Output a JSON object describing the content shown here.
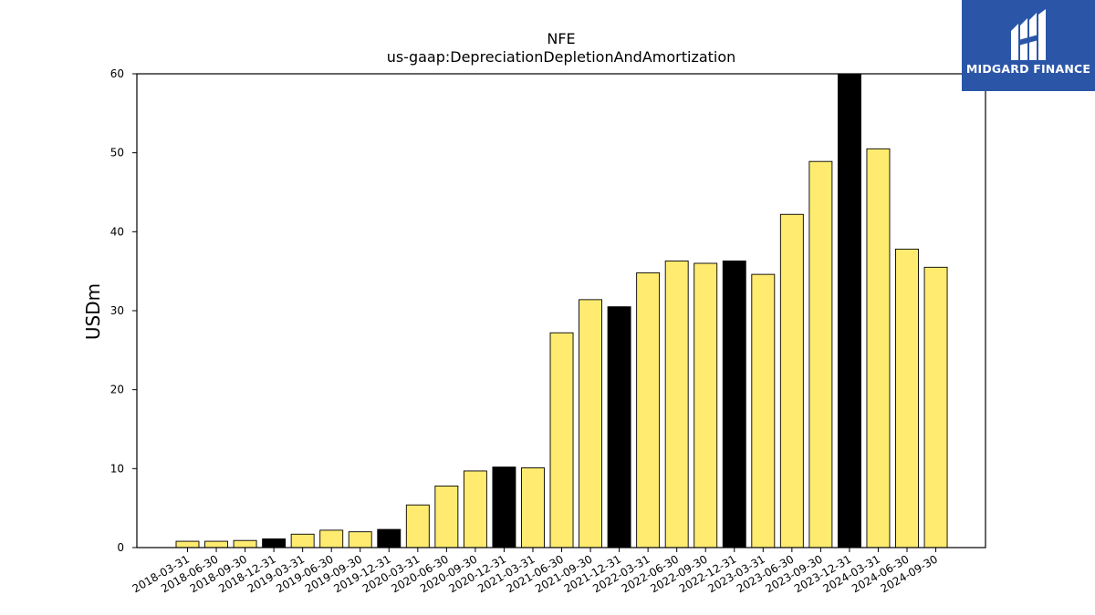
{
  "chart_data": {
    "type": "bar",
    "title": "NFE",
    "subtitle": "us-gaap:DepreciationDepletionAndAmortization",
    "xlabel": "",
    "ylabel": "USDm",
    "ylim": [
      0,
      60
    ],
    "yticks": [
      0,
      10,
      20,
      30,
      40,
      50,
      60
    ],
    "grid": false,
    "categories": [
      "2018-03-31",
      "2018-06-30",
      "2018-09-30",
      "2018-12-31",
      "2019-03-31",
      "2019-06-30",
      "2019-09-30",
      "2019-12-31",
      "2020-03-31",
      "2020-06-30",
      "2020-09-30",
      "2020-12-31",
      "2021-03-31",
      "2021-06-30",
      "2021-09-30",
      "2021-12-31",
      "2022-03-31",
      "2022-06-30",
      "2022-09-30",
      "2022-12-31",
      "2023-03-31",
      "2023-06-30",
      "2023-09-30",
      "2023-12-31",
      "2024-03-31",
      "2024-06-30",
      "2024-09-30"
    ],
    "values": [
      0.8,
      0.8,
      0.9,
      1.1,
      1.7,
      2.2,
      2.0,
      2.3,
      5.4,
      7.8,
      9.7,
      10.2,
      10.1,
      27.2,
      31.4,
      30.5,
      34.8,
      36.3,
      36.0,
      36.3,
      34.6,
      42.2,
      48.9,
      60.3,
      50.5,
      37.8,
      35.5
    ],
    "colors": {
      "quarter": "#ffeb70",
      "year_end": "#000000",
      "edge": "#000000"
    }
  },
  "logo": {
    "text": "MIDGARD FINANCE",
    "background": "#2b56a8"
  }
}
